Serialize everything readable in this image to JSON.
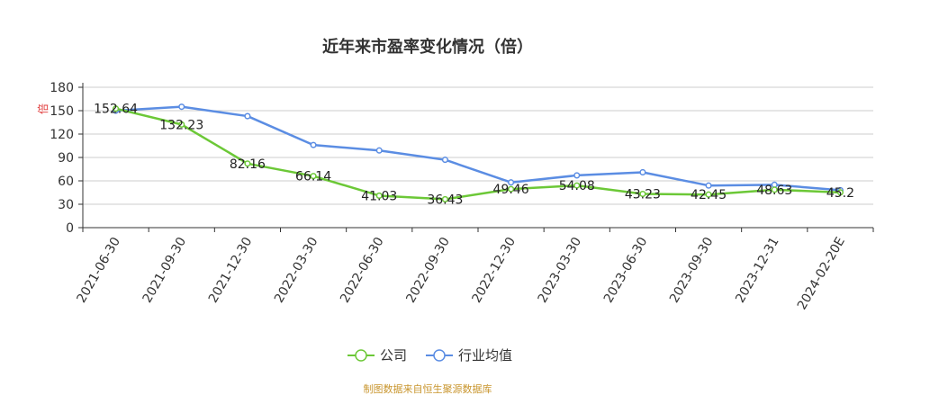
{
  "chart_data": {
    "type": "line",
    "title": "近年来市盈率变化情况（倍）",
    "ylabel": "倍",
    "ylim": [
      0,
      180
    ],
    "yticks": [
      0,
      30,
      60,
      90,
      120,
      150,
      180
    ],
    "grid": true,
    "legend": "bottom-center",
    "categories": [
      "2021-06-30",
      "2021-09-30",
      "2021-12-30",
      "2022-03-30",
      "2022-06-30",
      "2022-09-30",
      "2022-12-30",
      "2023-03-30",
      "2023-06-30",
      "2023-09-30",
      "2023-12-31",
      "2024-02-20E"
    ],
    "series": [
      {
        "name": "公司",
        "color": "#6cc837",
        "values": [
          152.64,
          132.23,
          82.16,
          66.14,
          41.03,
          36.43,
          49.46,
          54.08,
          43.23,
          42.45,
          48.63,
          45.2
        ],
        "labels": [
          "152.64",
          "132.23",
          "82.16",
          "66.14",
          "41.03",
          "36.43",
          "49.46",
          "54.08",
          "43.23",
          "42.45",
          "48.63",
          "45.2"
        ]
      },
      {
        "name": "行业均值",
        "color": "#5b8de3",
        "values": [
          150,
          155,
          143,
          106,
          99,
          87,
          58,
          67,
          71,
          54,
          55,
          48
        ]
      }
    ],
    "source": "制图数据来自恒生聚源数据库"
  }
}
